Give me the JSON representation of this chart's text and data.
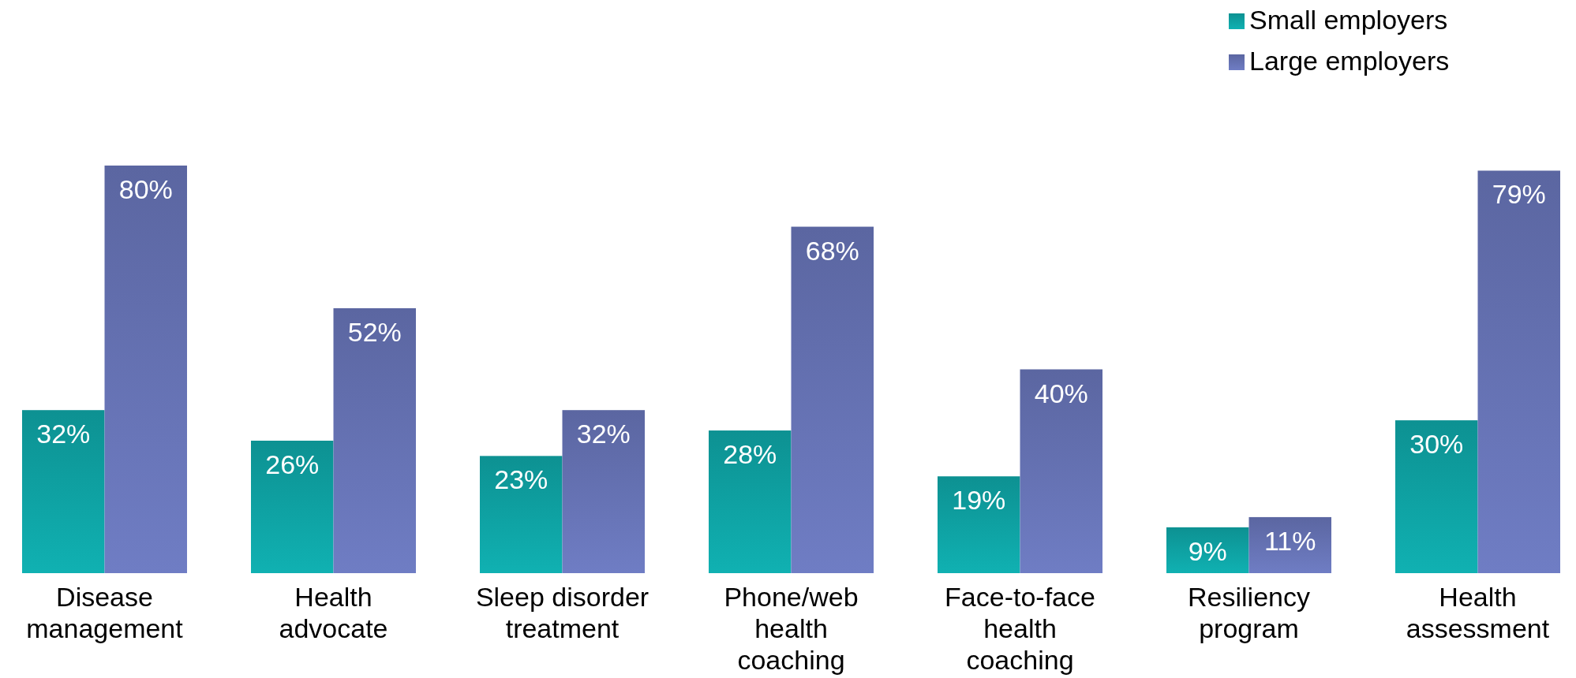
{
  "chart_data": {
    "type": "bar",
    "categories": [
      "Disease\nmanagement",
      "Health\nadvocate",
      "Sleep disorder\ntreatment",
      "Phone/web\nhealth\ncoaching",
      "Face-to-face\nhealth\ncoaching",
      "Resiliency\nprogram",
      "Health\nassessment"
    ],
    "series": [
      {
        "name": "Small employers",
        "color": "#0e9fa0",
        "values": [
          32,
          26,
          23,
          28,
          19,
          9,
          30
        ],
        "value_labels": [
          "32%",
          "26%",
          "23%",
          "28%",
          "19%",
          "9%",
          "30%"
        ]
      },
      {
        "name": "Large employers",
        "color": "#6470b0",
        "values": [
          80,
          52,
          32,
          68,
          40,
          11,
          79
        ],
        "value_labels": [
          "80%",
          "52%",
          "32%",
          "68%",
          "40%",
          "11%",
          "79%"
        ]
      }
    ],
    "legend": "top right"
  }
}
